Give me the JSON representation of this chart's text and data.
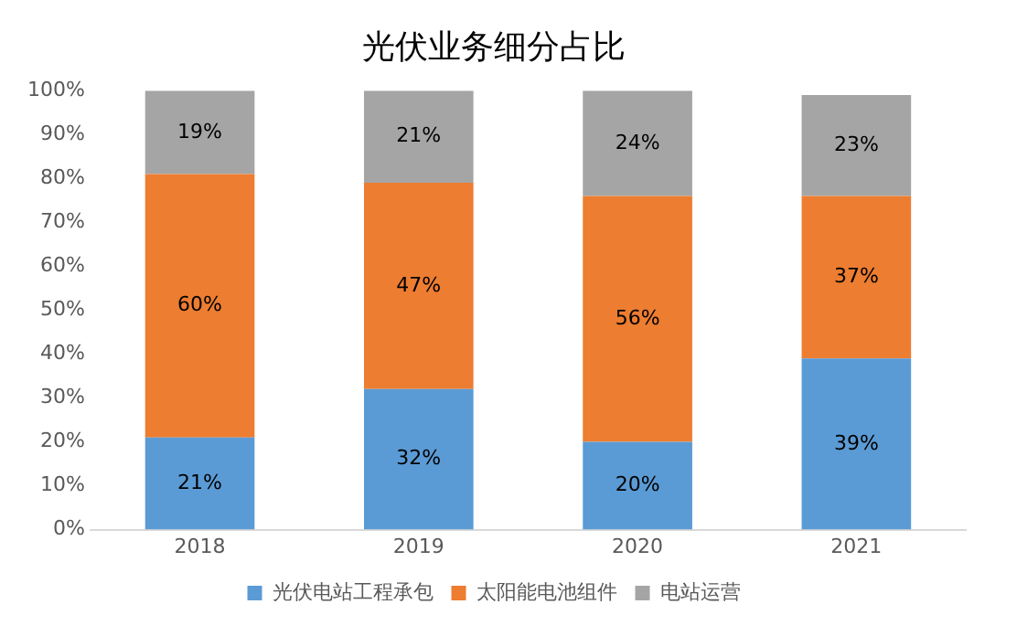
{
  "chart_data": {
    "type": "bar",
    "title": "光伏业务细分占比",
    "stacked": true,
    "categories": [
      "2018",
      "2019",
      "2020",
      "2021"
    ],
    "series": [
      {
        "name": "光伏电站工程承包",
        "color": "#5b9bd5",
        "values": [
          21,
          32,
          20,
          39
        ],
        "value_labels": [
          "21%",
          "32%",
          "20%",
          "39%"
        ]
      },
      {
        "name": "太阳能电池组件",
        "color": "#ed7d31",
        "values": [
          60,
          47,
          56,
          37
        ],
        "value_labels": [
          "60%",
          "47%",
          "56%",
          "37%"
        ]
      },
      {
        "name": "电站运营",
        "color": "#a5a5a5",
        "values": [
          19,
          21,
          24,
          23
        ],
        "value_labels": [
          "19%",
          "21%",
          "24%",
          "23%"
        ]
      }
    ],
    "ylim": [
      0,
      100
    ],
    "yticks": [
      {
        "value": 0,
        "label": "0%"
      },
      {
        "value": 10,
        "label": "10%"
      },
      {
        "value": 20,
        "label": "20%"
      },
      {
        "value": 30,
        "label": "30%"
      },
      {
        "value": 40,
        "label": "40%"
      },
      {
        "value": 50,
        "label": "50%"
      },
      {
        "value": 60,
        "label": "60%"
      },
      {
        "value": 70,
        "label": "70%"
      },
      {
        "value": 80,
        "label": "80%"
      },
      {
        "value": 90,
        "label": "90%"
      },
      {
        "value": 100,
        "label": "100%"
      }
    ],
    "grid": false,
    "legend": "bottom"
  }
}
